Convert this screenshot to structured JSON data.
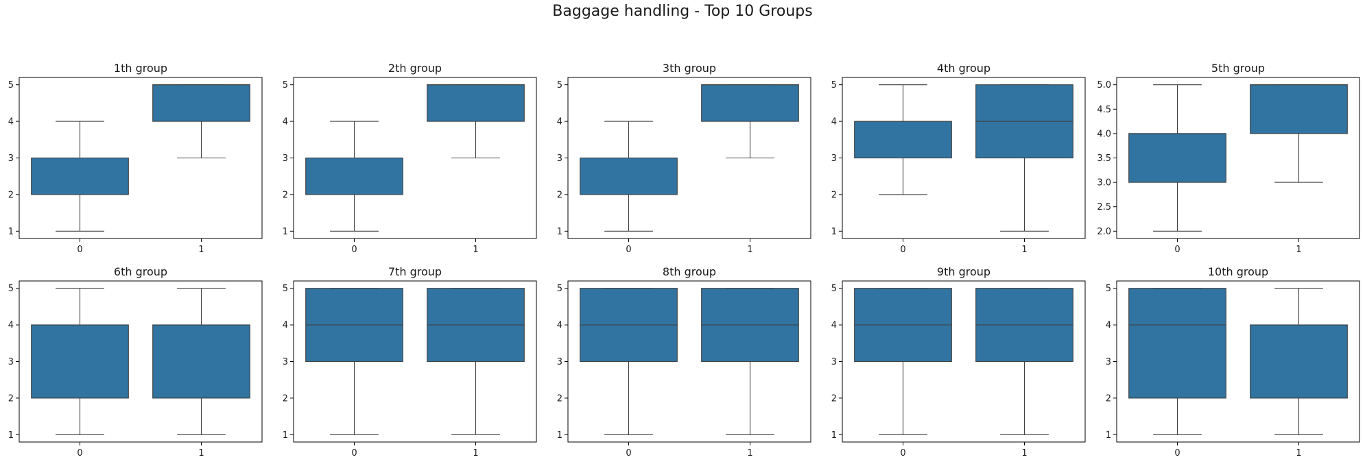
{
  "figure": {
    "title": "Baggage handling - Top 10 Groups"
  },
  "colors": {
    "box": "#3274a1",
    "line": "#3d3d3d",
    "axis": "#000000"
  },
  "chart_data": [
    {
      "type": "box",
      "title": "1th group",
      "categories": [
        "0",
        "1"
      ],
      "ylim": [
        0.8,
        5.2
      ],
      "yticks": [
        1,
        2,
        3,
        4,
        5
      ],
      "boxes": [
        {
          "whislo": 1,
          "q1": 2,
          "med": 3,
          "q3": 3,
          "whishi": 4
        },
        {
          "whislo": 3,
          "q1": 4,
          "med": 5,
          "q3": 5,
          "whishi": 5
        }
      ]
    },
    {
      "type": "box",
      "title": "2th group",
      "categories": [
        "0",
        "1"
      ],
      "ylim": [
        0.8,
        5.2
      ],
      "yticks": [
        1,
        2,
        3,
        4,
        5
      ],
      "boxes": [
        {
          "whislo": 1,
          "q1": 2,
          "med": 3,
          "q3": 3,
          "whishi": 4
        },
        {
          "whislo": 3,
          "q1": 4,
          "med": 5,
          "q3": 5,
          "whishi": 5
        }
      ]
    },
    {
      "type": "box",
      "title": "3th group",
      "categories": [
        "0",
        "1"
      ],
      "ylim": [
        0.8,
        5.2
      ],
      "yticks": [
        1,
        2,
        3,
        4,
        5
      ],
      "boxes": [
        {
          "whislo": 1,
          "q1": 2,
          "med": 3,
          "q3": 3,
          "whishi": 4
        },
        {
          "whislo": 3,
          "q1": 4,
          "med": 5,
          "q3": 5,
          "whishi": 5
        }
      ]
    },
    {
      "type": "box",
      "title": "4th group",
      "categories": [
        "0",
        "1"
      ],
      "ylim": [
        0.8,
        5.2
      ],
      "yticks": [
        1,
        2,
        3,
        4,
        5
      ],
      "boxes": [
        {
          "whislo": 2,
          "q1": 3,
          "med": 4,
          "q3": 4,
          "whishi": 5
        },
        {
          "whislo": 1,
          "q1": 3,
          "med": 4,
          "q3": 5,
          "whishi": 5
        }
      ]
    },
    {
      "type": "box",
      "title": "5th group",
      "categories": [
        "0",
        "1"
      ],
      "ylim": [
        1.85,
        5.15
      ],
      "yticks": [
        2.0,
        2.5,
        3.0,
        3.5,
        4.0,
        4.5,
        5.0
      ],
      "ytick_labels": [
        "2.0",
        "2.5",
        "3.0",
        "3.5",
        "4.0",
        "4.5",
        "5.0"
      ],
      "boxes": [
        {
          "whislo": 2,
          "q1": 3,
          "med": 4,
          "q3": 4,
          "whishi": 5
        },
        {
          "whislo": 3,
          "q1": 4,
          "med": 5,
          "q3": 5,
          "whishi": 5
        }
      ]
    },
    {
      "type": "box",
      "title": "6th group",
      "categories": [
        "0",
        "1"
      ],
      "ylim": [
        0.8,
        5.2
      ],
      "yticks": [
        1,
        2,
        3,
        4,
        5
      ],
      "boxes": [
        {
          "whislo": 1,
          "q1": 2,
          "med": 4,
          "q3": 4,
          "whishi": 5
        },
        {
          "whislo": 1,
          "q1": 2,
          "med": 4,
          "q3": 4,
          "whishi": 5
        }
      ]
    },
    {
      "type": "box",
      "title": "7th group",
      "categories": [
        "0",
        "1"
      ],
      "ylim": [
        0.8,
        5.2
      ],
      "yticks": [
        1,
        2,
        3,
        4,
        5
      ],
      "boxes": [
        {
          "whislo": 1,
          "q1": 3,
          "med": 4,
          "q3": 5,
          "whishi": 5
        },
        {
          "whislo": 1,
          "q1": 3,
          "med": 4,
          "q3": 5,
          "whishi": 5
        }
      ]
    },
    {
      "type": "box",
      "title": "8th group",
      "categories": [
        "0",
        "1"
      ],
      "ylim": [
        0.8,
        5.2
      ],
      "yticks": [
        1,
        2,
        3,
        4,
        5
      ],
      "boxes": [
        {
          "whislo": 1,
          "q1": 3,
          "med": 4,
          "q3": 5,
          "whishi": 5
        },
        {
          "whislo": 1,
          "q1": 3,
          "med": 4,
          "q3": 5,
          "whishi": 5
        }
      ]
    },
    {
      "type": "box",
      "title": "9th group",
      "categories": [
        "0",
        "1"
      ],
      "ylim": [
        0.8,
        5.2
      ],
      "yticks": [
        1,
        2,
        3,
        4,
        5
      ],
      "boxes": [
        {
          "whislo": 1,
          "q1": 3,
          "med": 4,
          "q3": 5,
          "whishi": 5
        },
        {
          "whislo": 1,
          "q1": 3,
          "med": 4,
          "q3": 5,
          "whishi": 5
        }
      ]
    },
    {
      "type": "box",
      "title": "10th group",
      "categories": [
        "0",
        "1"
      ],
      "ylim": [
        0.8,
        5.2
      ],
      "yticks": [
        1,
        2,
        3,
        4,
        5
      ],
      "boxes": [
        {
          "whislo": 1,
          "q1": 2,
          "med": 4,
          "q3": 5,
          "whishi": 5
        },
        {
          "whislo": 1,
          "q1": 2,
          "med": 4,
          "q3": 4,
          "whishi": 5
        }
      ]
    }
  ]
}
